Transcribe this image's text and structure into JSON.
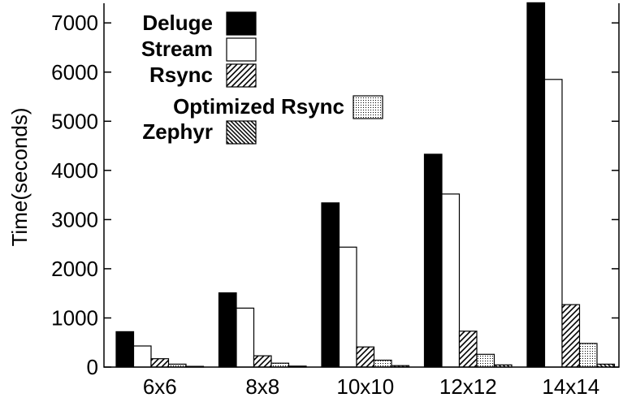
{
  "chart_data": {
    "type": "bar",
    "title": "",
    "xlabel": "",
    "ylabel": "Time(seconds)",
    "ylim": [
      0,
      7400
    ],
    "yticks": [
      0,
      1000,
      2000,
      3000,
      4000,
      5000,
      6000,
      7000
    ],
    "categories": [
      "6x6",
      "8x8",
      "10x10",
      "12x12",
      "14x14"
    ],
    "legend_position": "top-left",
    "grid": false,
    "series": [
      {
        "name": "Deluge",
        "fill": "solid-black",
        "values": [
          720,
          1510,
          3340,
          4330,
          7410
        ]
      },
      {
        "name": "Stream",
        "fill": "white",
        "values": [
          430,
          1200,
          2440,
          3520,
          5850
        ]
      },
      {
        "name": "Rsync",
        "fill": "diagonal-hatch",
        "values": [
          170,
          230,
          410,
          730,
          1270
        ]
      },
      {
        "name": "Optimized Rsync",
        "fill": "dots",
        "values": [
          60,
          80,
          140,
          260,
          480
        ]
      },
      {
        "name": "Zephyr",
        "fill": "dense-back-hatch",
        "values": [
          15,
          20,
          30,
          45,
          60
        ]
      }
    ]
  }
}
